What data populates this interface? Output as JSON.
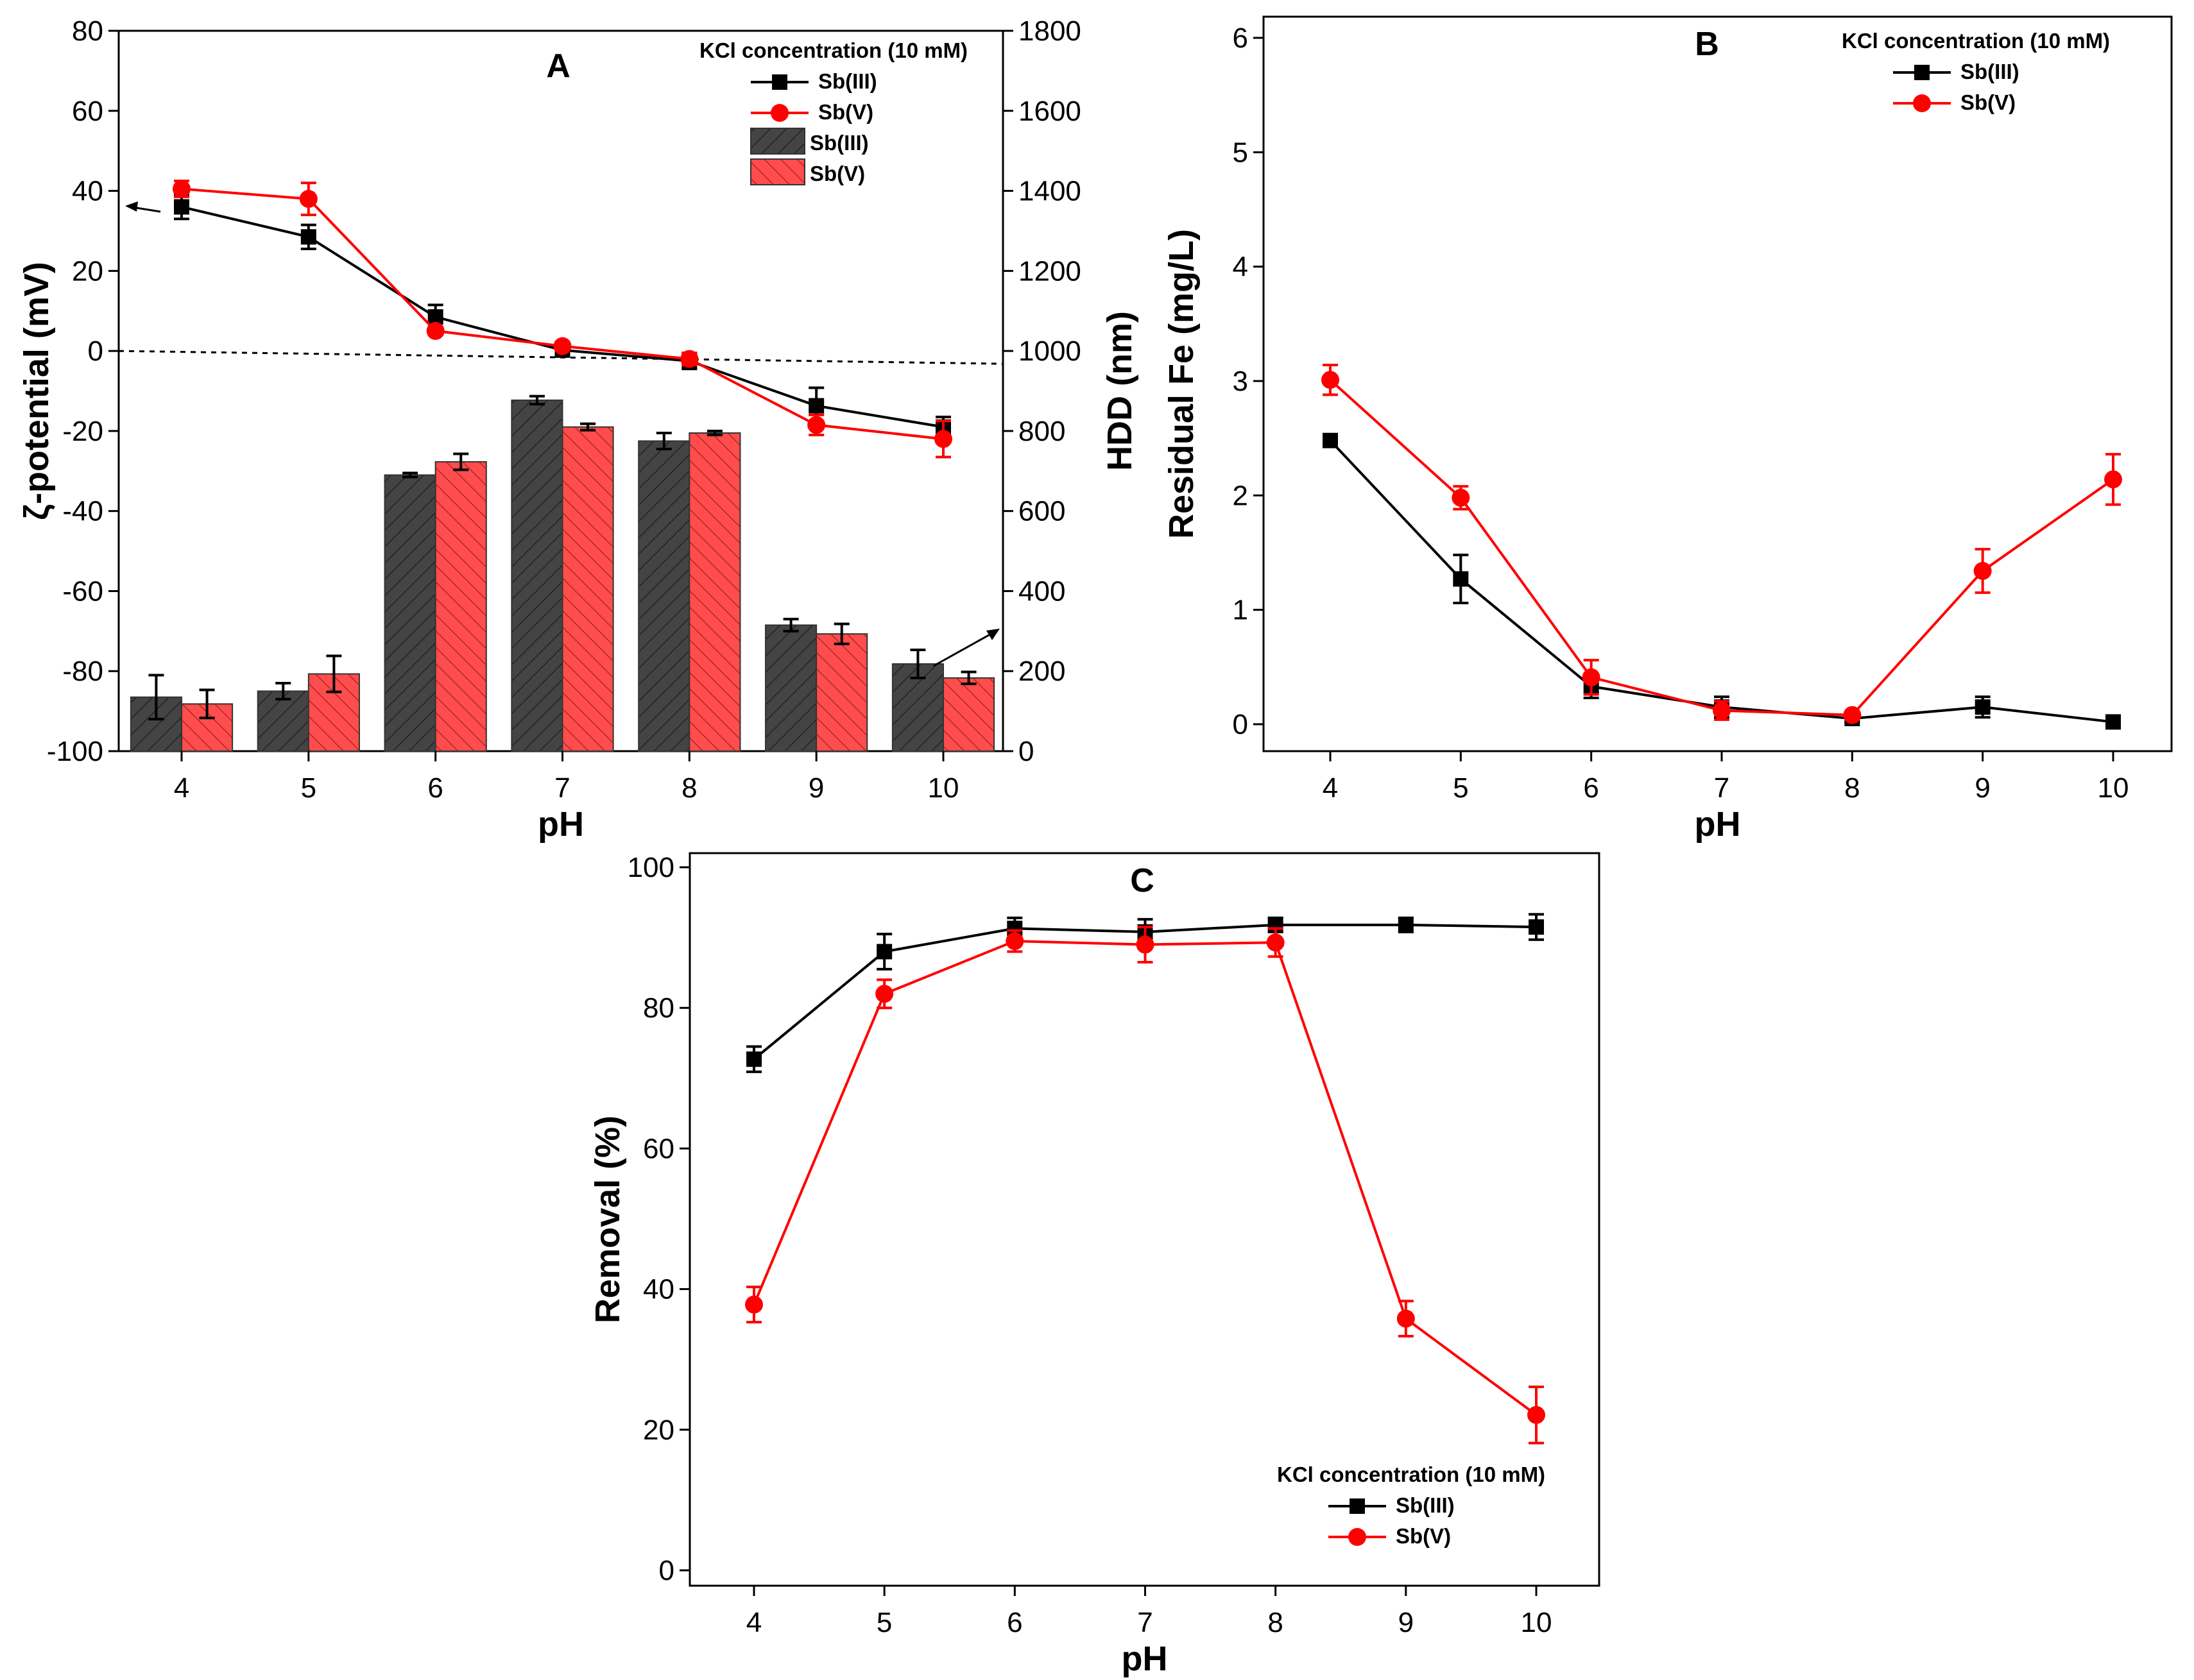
{
  "chart_data": [
    {
      "id": "A",
      "type": "bar+line",
      "panel_label": "A",
      "xlabel": "pH",
      "ylabel": "ζ-potential (mV)",
      "y2label": "HDD (nm)",
      "categories": [
        "4",
        "5",
        "6",
        "7",
        "8",
        "9",
        "10"
      ],
      "ylim": [
        -100,
        80
      ],
      "yticks": [
        "-100",
        "-80",
        "-60",
        "-40",
        "-20",
        "0",
        "20",
        "40",
        "60",
        "80"
      ],
      "y2lim": [
        0,
        1800
      ],
      "y2ticks": [
        "0",
        "200",
        "400",
        "600",
        "800",
        "1000",
        "1200",
        "1400",
        "1600",
        "1800"
      ],
      "legend_title": "KCl concentration (10 mM)",
      "line_series": [
        {
          "name": "Sb(III)",
          "color": "#000000",
          "values": [
            36,
            28.5,
            8.5,
            0.2,
            -2.5,
            -13.7,
            -19
          ],
          "err": [
            3,
            3,
            3,
            1.5,
            2,
            4.5,
            2.5
          ]
        },
        {
          "name": "Sb(V)",
          "color": "#ff0000",
          "values": [
            40.5,
            38,
            5,
            1.2,
            -2,
            -18.5,
            -22
          ],
          "err": [
            2,
            4,
            1,
            1,
            1.5,
            2.5,
            4.5
          ]
        }
      ],
      "bar_series": [
        {
          "name": "Sb(III)",
          "color": "#444444",
          "values": [
            135,
            150,
            690,
            877,
            775,
            315,
            218
          ],
          "err": [
            55,
            20,
            5,
            10,
            20,
            15,
            35
          ]
        },
        {
          "name": "Sb(V)",
          "color": "#ff4d4d",
          "values": [
            118,
            193,
            723,
            810,
            795,
            293,
            183
          ],
          "err": [
            35,
            45,
            20,
            8,
            5,
            25,
            15
          ]
        }
      ]
    },
    {
      "id": "B",
      "type": "line",
      "panel_label": "B",
      "xlabel": "pH",
      "ylabel": "Residual Fe (mg/L)",
      "categories": [
        "4",
        "5",
        "6",
        "7",
        "8",
        "9",
        "10"
      ],
      "ylim": [
        0,
        6
      ],
      "yticks": [
        "0",
        "1",
        "2",
        "3",
        "4",
        "5",
        "6"
      ],
      "legend_title": "KCl concentration (10 mM)",
      "series": [
        {
          "name": "Sb(III)",
          "color": "#000000",
          "values": [
            2.48,
            1.27,
            0.33,
            0.15,
            0.05,
            0.15,
            0.02
          ],
          "err": [
            0.03,
            0.21,
            0.1,
            0.09,
            0.03,
            0.09,
            0.03
          ]
        },
        {
          "name": "Sb(V)",
          "color": "#ff0000",
          "values": [
            3.01,
            1.98,
            0.41,
            0.12,
            0.08,
            1.34,
            2.14
          ],
          "err": [
            0.13,
            0.1,
            0.15,
            0.08,
            0.03,
            0.19,
            0.22
          ]
        }
      ]
    },
    {
      "id": "C",
      "type": "line",
      "panel_label": "C",
      "xlabel": "pH",
      "ylabel": "Removal (%)",
      "categories": [
        "4",
        "5",
        "6",
        "7",
        "8",
        "9",
        "10"
      ],
      "ylim": [
        0,
        100
      ],
      "yticks": [
        "0",
        "20",
        "40",
        "60",
        "80",
        "100"
      ],
      "legend_title": "KCl concentration (10 mM)",
      "series": [
        {
          "name": "Sb(III)",
          "color": "#000000",
          "values": [
            72.7,
            88,
            91.3,
            90.8,
            91.8,
            91.8,
            91.5
          ],
          "err": [
            1.8,
            2.5,
            1.5,
            1.8,
            1,
            1,
            1.8
          ]
        },
        {
          "name": "Sb(V)",
          "color": "#ff0000",
          "values": [
            37.8,
            82,
            89.5,
            89,
            89.3,
            35.8,
            22.1
          ],
          "err": [
            2.5,
            2,
            1.5,
            2.5,
            2,
            2.5,
            4
          ]
        }
      ]
    }
  ]
}
